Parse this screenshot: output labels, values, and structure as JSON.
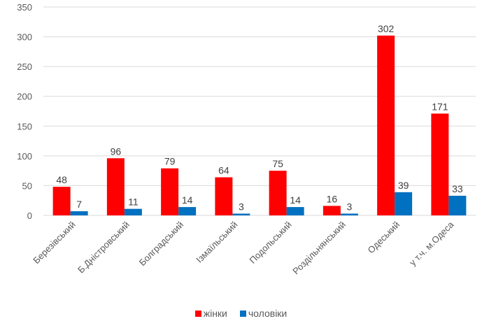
{
  "chart_data": {
    "type": "bar",
    "title": "",
    "xlabel": "",
    "ylabel": "",
    "ylim": [
      0,
      350
    ],
    "yticks": [
      0,
      50,
      100,
      150,
      200,
      250,
      300,
      350
    ],
    "grid": true,
    "legend_position": "bottom",
    "categories": [
      "Березівський",
      "Б.Дністровський",
      "Болградський",
      "Ізмаїльський",
      "Подольський",
      "Роздільнянський",
      "Одеський",
      "у т.ч. м.Одеса"
    ],
    "series": [
      {
        "name": "жінки",
        "color": "#ff0000",
        "values": [
          48,
          96,
          79,
          64,
          75,
          16,
          302,
          171
        ]
      },
      {
        "name": "чоловіки",
        "color": "#0070c0",
        "values": [
          7,
          11,
          14,
          3,
          14,
          3,
          39,
          33
        ]
      }
    ]
  }
}
